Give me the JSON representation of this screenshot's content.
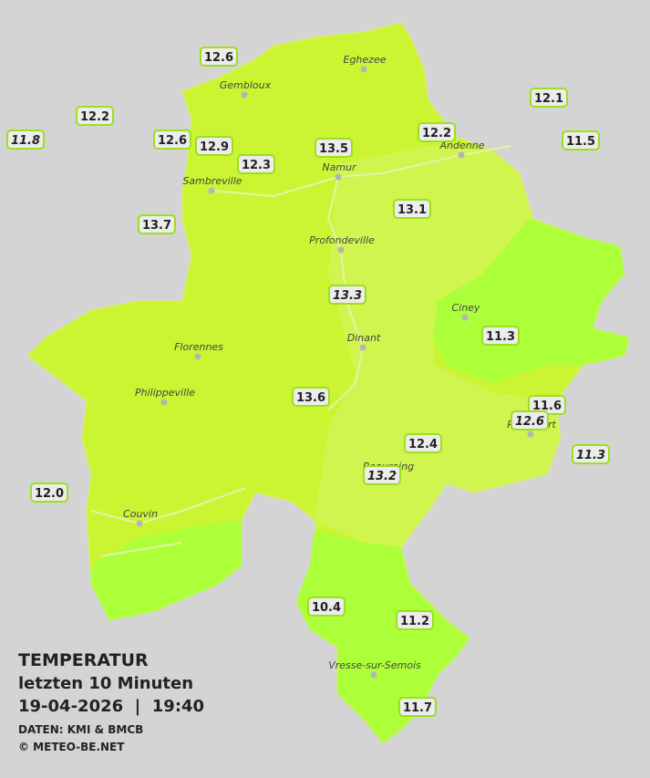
{
  "map": {
    "stations": [
      {
        "value": "12.6",
        "italic": false
      },
      {
        "value": "12.2",
        "italic": false
      },
      {
        "value": "11.8",
        "italic": true
      },
      {
        "value": "12.6",
        "italic": false
      },
      {
        "value": "12.9",
        "italic": false
      },
      {
        "value": "12.3",
        "italic": false
      },
      {
        "value": "13.5",
        "italic": false
      },
      {
        "value": "12.2",
        "italic": false
      },
      {
        "value": "12.1",
        "italic": false
      },
      {
        "value": "11.5",
        "italic": false
      },
      {
        "value": "13.7",
        "italic": false
      },
      {
        "value": "13.1",
        "italic": false
      },
      {
        "value": "13.3",
        "italic": true
      },
      {
        "value": "11.3",
        "italic": false
      },
      {
        "value": "13.6",
        "italic": false
      },
      {
        "value": "11.6",
        "italic": false
      },
      {
        "value": "12.6",
        "italic": true
      },
      {
        "value": "11.3",
        "italic": true
      },
      {
        "value": "12.4",
        "italic": false
      },
      {
        "value": "13.2",
        "italic": true
      },
      {
        "value": "12.0",
        "italic": false
      },
      {
        "value": "10.4",
        "italic": false
      },
      {
        "value": "11.2",
        "italic": false
      },
      {
        "value": "11.7",
        "italic": false
      }
    ],
    "cities": [
      {
        "name": "Eghezee"
      },
      {
        "name": "Gembloux"
      },
      {
        "name": "Andenne"
      },
      {
        "name": "Namur"
      },
      {
        "name": "Sambreville"
      },
      {
        "name": "Profondeville"
      },
      {
        "name": "Ciney"
      },
      {
        "name": "Dinant"
      },
      {
        "name": "Florennes"
      },
      {
        "name": "Philippeville"
      },
      {
        "name": "Rochefort"
      },
      {
        "name": "Beauraing"
      },
      {
        "name": "Couvin"
      },
      {
        "name": "Vresse-sur-Semois"
      }
    ]
  },
  "legend": {
    "title": "TEMPERATUR",
    "subtitle": "letzten 10 Minuten",
    "datetime": "19-04-2026  |  19:40",
    "source": "DATEN: KMI & BMCB",
    "copyright": "© METEO-BE.NET"
  }
}
